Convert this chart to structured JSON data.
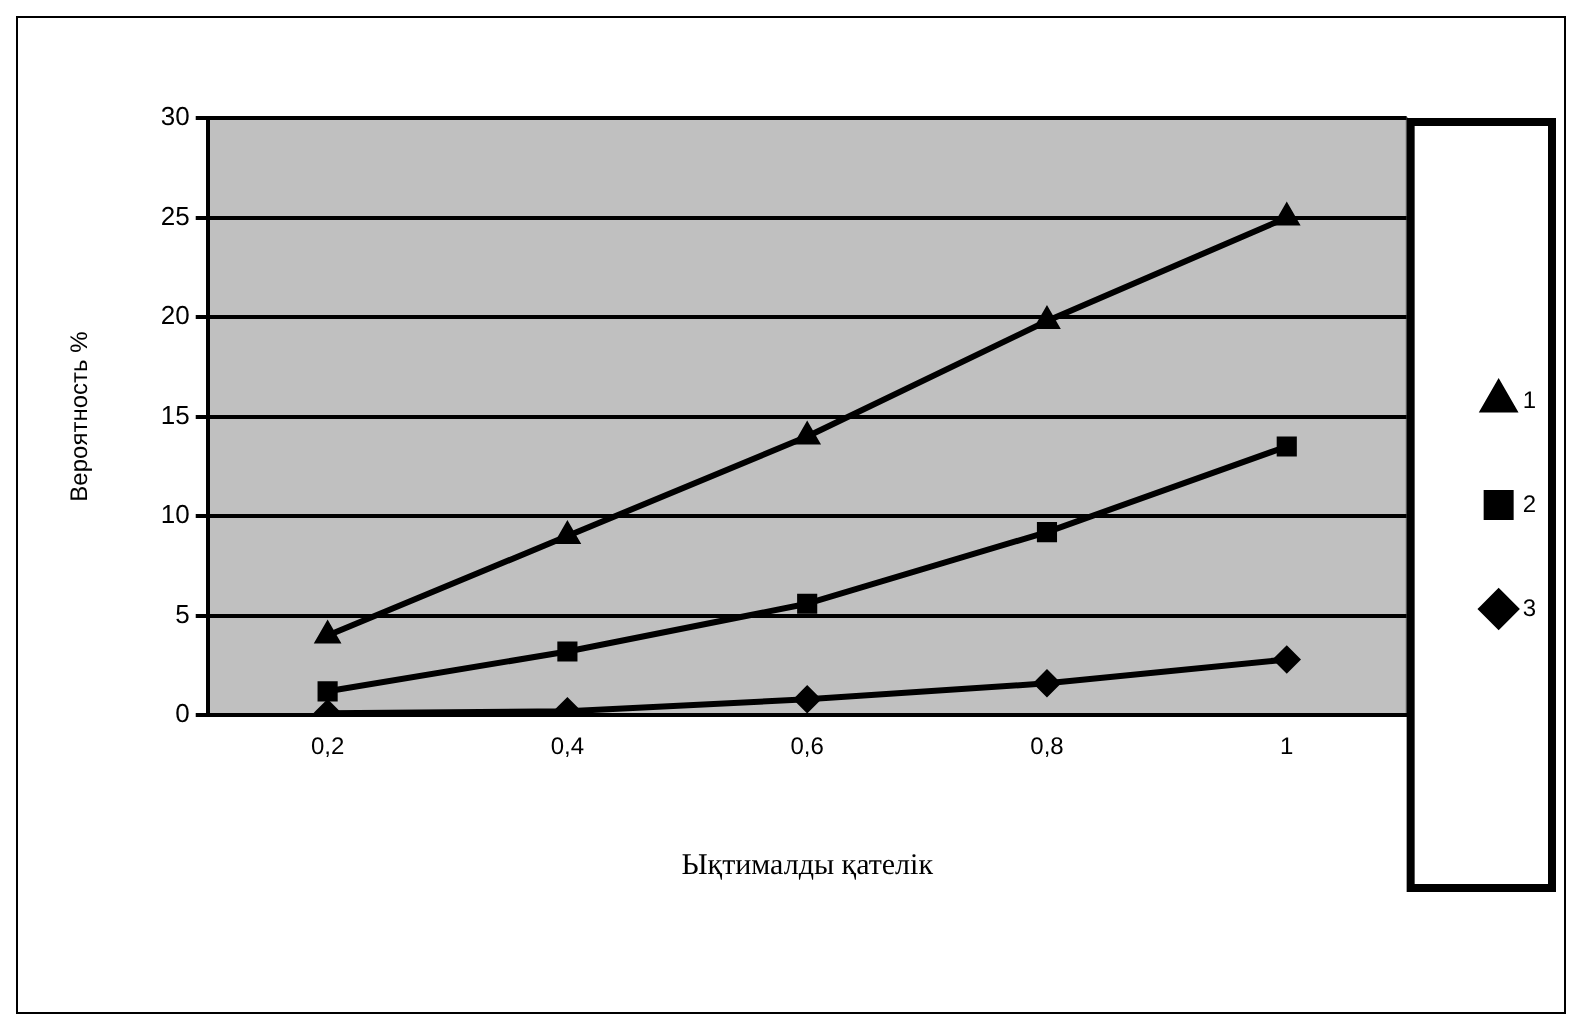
{
  "chart_data": {
    "type": "line",
    "xlabel": "Ықтималды қателік",
    "ylabel": "Вероятность %",
    "categories": [
      "0,2",
      "0,4",
      "0,6",
      "0,8",
      "1"
    ],
    "series": [
      {
        "name": "1",
        "color": "#000000",
        "marker": "triangle",
        "values": [
          4,
          9,
          14,
          19.8,
          25
        ]
      },
      {
        "name": "2",
        "color": "#000000",
        "marker": "square",
        "values": [
          1.2,
          3.2,
          5.6,
          9.2,
          13.5
        ]
      },
      {
        "name": "3",
        "color": "#000000",
        "marker": "diamond",
        "values": [
          0.1,
          0.2,
          0.8,
          1.6,
          2.8
        ]
      }
    ],
    "ylim": [
      0,
      30
    ],
    "yticks": [
      0,
      5,
      10,
      15,
      20,
      25,
      30
    ],
    "grid": "y",
    "legend": "right",
    "line_style": "solid"
  }
}
